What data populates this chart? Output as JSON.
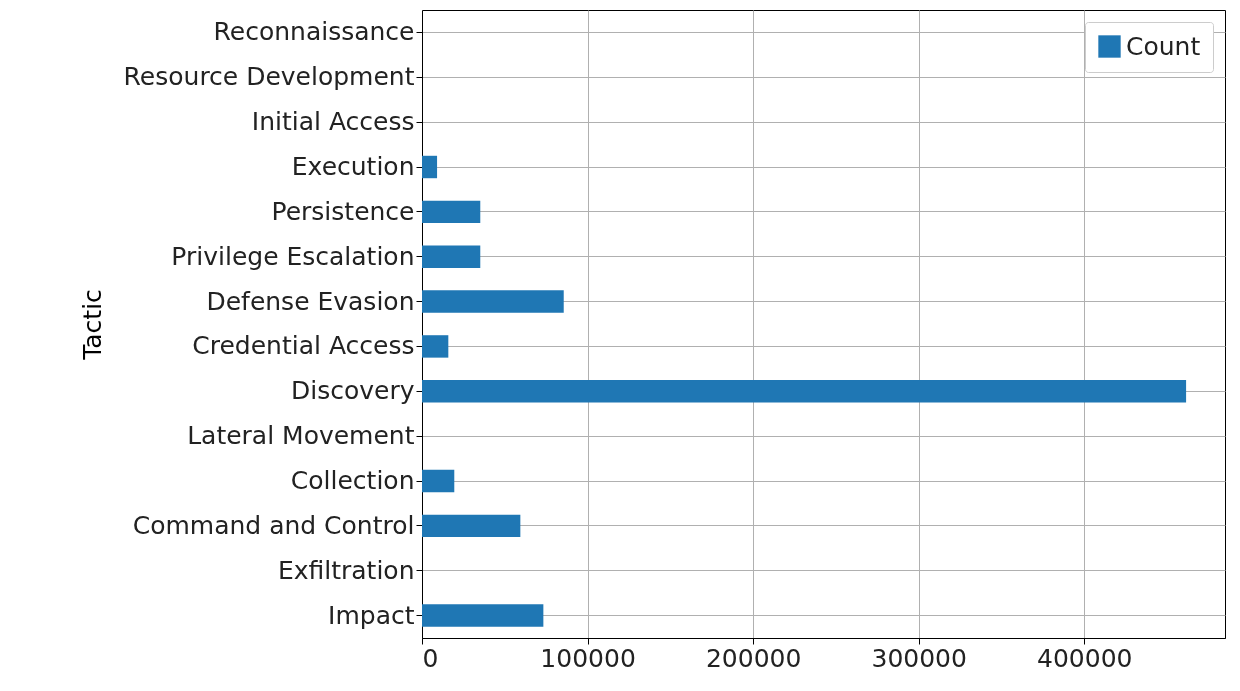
{
  "chart_data": {
    "type": "bar",
    "orientation": "horizontal",
    "ylabel": "Tactic",
    "categories": [
      "Reconnaissance",
      "Resource Development",
      "Initial Access",
      "Execution",
      "Persistence",
      "Privilege Escalation",
      "Defense Evasion",
      "Credential Access",
      "Discovery",
      "Lateral Movement",
      "Collection",
      "Command and Control",
      "Exfiltration",
      "Impact"
    ],
    "series": [
      {
        "name": "Count",
        "color": "#1f77b4",
        "values": [
          0,
          0,
          0,
          9100,
          35200,
          35200,
          85600,
          15900,
          461500,
          0,
          19500,
          59400,
          0,
          73300
        ]
      }
    ],
    "xlim": [
      0,
      485000
    ],
    "xticks": [
      0,
      100000,
      200000,
      300000,
      400000
    ],
    "grid": true,
    "legend": "top right"
  }
}
